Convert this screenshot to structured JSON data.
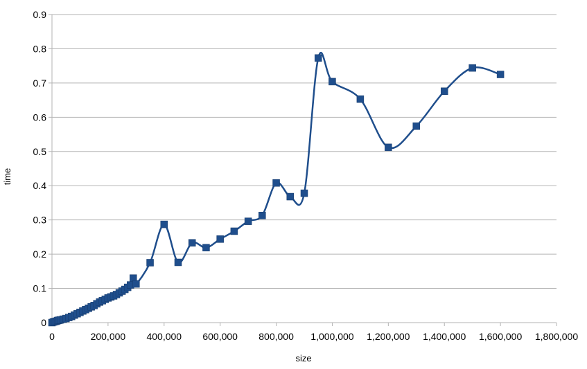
{
  "chart_data": {
    "type": "scatter",
    "title": "",
    "xlabel": "size",
    "ylabel": "time",
    "xlim": [
      0,
      1800000
    ],
    "ylim": [
      0,
      0.9
    ],
    "x_ticks": [
      0,
      200000,
      400000,
      600000,
      800000,
      1000000,
      1200000,
      1400000,
      1600000,
      1800000
    ],
    "x_tick_labels": [
      "0",
      "200,000",
      "400,000",
      "600,000",
      "800,000",
      "1,000,000",
      "1,200,000",
      "1,400,000",
      "1,600,000",
      "1,800,000"
    ],
    "y_ticks": [
      0,
      0.1,
      0.2,
      0.3,
      0.4,
      0.5,
      0.6,
      0.7,
      0.8,
      0.9
    ],
    "y_tick_labels": [
      "0",
      "0.1",
      "0.2",
      "0.3",
      "0.4",
      "0.5",
      "0.6",
      "0.7",
      "0.8",
      "0.9"
    ],
    "grid": true,
    "legend": "none",
    "series": [
      {
        "color": "#1f4e8c",
        "marker": "square",
        "line": "smooth",
        "x": [
          0,
          5000,
          10000,
          15000,
          20000,
          25000,
          30000,
          40000,
          50000,
          60000,
          70000,
          80000,
          90000,
          100000,
          110000,
          120000,
          130000,
          140000,
          150000,
          160000,
          170000,
          180000,
          190000,
          200000,
          210000,
          220000,
          230000,
          240000,
          250000,
          260000,
          270000,
          280000,
          290000,
          300000,
          350000,
          400000,
          450000,
          500000,
          550000,
          600000,
          650000,
          700000,
          750000,
          800000,
          850000,
          900000,
          950000,
          1000000,
          1100000,
          1200000,
          1300000,
          1400000,
          1500000,
          1600000
        ],
        "y": [
          0,
          0.002,
          0.003,
          0.004,
          0.006,
          0.007,
          0.008,
          0.01,
          0.012,
          0.015,
          0.018,
          0.022,
          0.026,
          0.03,
          0.034,
          0.038,
          0.042,
          0.046,
          0.05,
          0.055,
          0.06,
          0.064,
          0.068,
          0.072,
          0.075,
          0.078,
          0.082,
          0.087,
          0.092,
          0.097,
          0.103,
          0.11,
          0.13,
          0.113,
          0.175,
          0.287,
          0.176,
          0.233,
          0.219,
          0.244,
          0.267,
          0.296,
          0.313,
          0.408,
          0.368,
          0.378,
          0.773,
          0.704,
          0.653,
          0.512,
          0.574,
          0.676,
          0.744,
          0.725
        ]
      }
    ]
  }
}
